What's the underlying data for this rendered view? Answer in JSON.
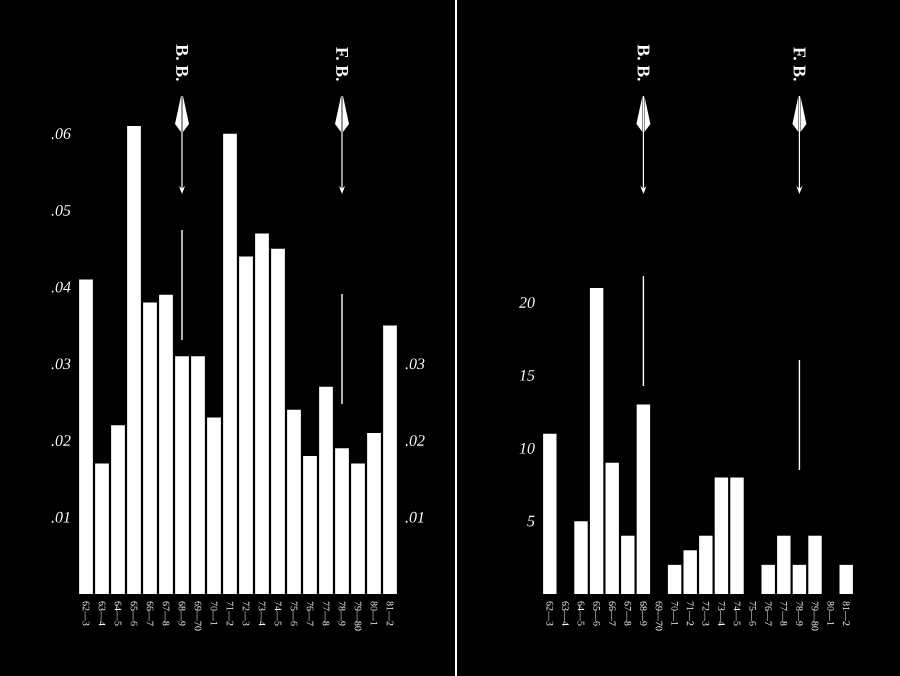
{
  "chart_data": [
    {
      "type": "bar",
      "color": "#ffffff",
      "categories": [
        "62—3",
        "63—4",
        "64—5",
        "65—6",
        "66—7",
        "67—8",
        "68—9",
        "69—70",
        "70—1",
        "71—2",
        "72—3",
        "73—4",
        "74—5",
        "75—6",
        "76—7",
        "77—8",
        "78—9",
        "79—80",
        "80—1",
        "81—2"
      ],
      "values": [
        0.041,
        0.017,
        0.022,
        0.061,
        0.038,
        0.039,
        0.031,
        0.031,
        0.023,
        0.06,
        0.044,
        0.047,
        0.045,
        0.024,
        0.018,
        0.027,
        0.019,
        0.017,
        0.021,
        0.035
      ],
      "ylim": [
        0,
        0.061
      ],
      "yticks": [
        {
          "value": 0.01,
          "label": ".01"
        },
        {
          "value": 0.02,
          "label": ".02"
        },
        {
          "value": 0.03,
          "label": ".03"
        },
        {
          "value": 0.04,
          "label": ".04"
        },
        {
          "value": 0.05,
          "label": ".05"
        },
        {
          "value": 0.06,
          "label": ".06"
        }
      ],
      "y2lim": [
        0,
        0.061
      ],
      "y2ticks": [
        {
          "value": 0.01,
          "label": ".01"
        },
        {
          "value": 0.02,
          "label": ".02"
        },
        {
          "value": 0.03,
          "label": ".03"
        }
      ],
      "annotations": [
        "B. B.",
        "F. B."
      ]
    },
    {
      "type": "bar",
      "color": "#ffffff",
      "categories": [
        "62—3",
        "63—4",
        "64—5",
        "65—6",
        "66—7",
        "67—8",
        "68—9",
        "69—70",
        "70—1",
        "71—2",
        "72—3",
        "73—4",
        "74—5",
        "75—6",
        "76—7",
        "77—8",
        "78—9",
        "79—80",
        "80—1",
        "81—2"
      ],
      "values": [
        11,
        0,
        5,
        21,
        9,
        4,
        13,
        0,
        2,
        3,
        4,
        8,
        8,
        0,
        2,
        4,
        2,
        4,
        0,
        2
      ],
      "ylim": [
        0,
        21
      ],
      "yticks": [
        5,
        10,
        15,
        20
      ],
      "annotations": [
        "B. B.",
        "F. B."
      ]
    }
  ]
}
